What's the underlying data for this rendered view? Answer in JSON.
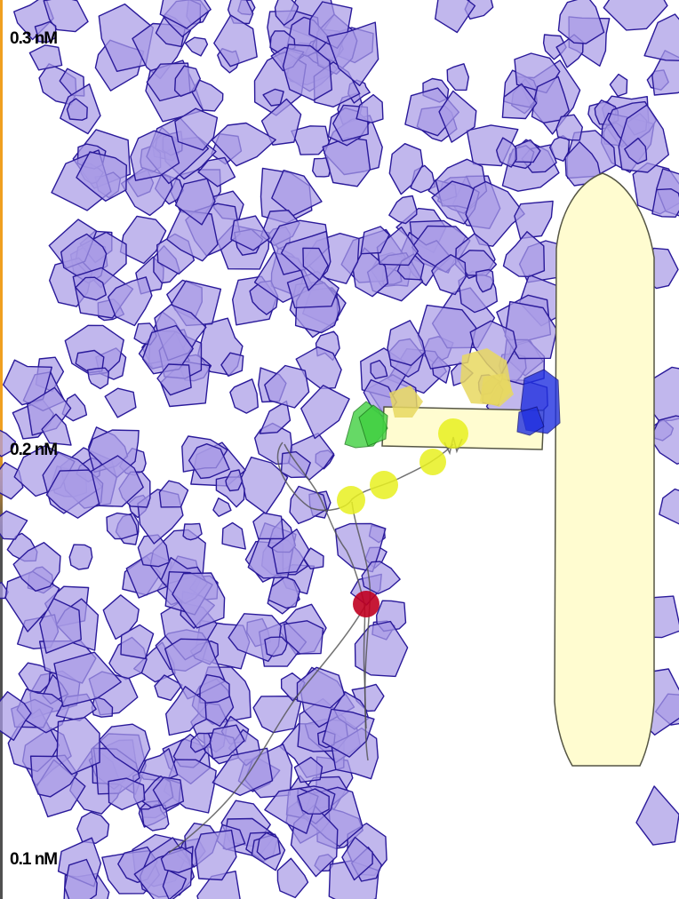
{
  "scale": {
    "labels": [
      "0.3 nM",
      "0.2 nM",
      "0.1 nM"
    ],
    "bar_color_top": "#f0a020",
    "bar_color_bottom": "#505050"
  },
  "colors": {
    "actin_fill": "#a99be6",
    "actin_stroke": "#2a1a9a",
    "filament_fill": "#fffcd0",
    "filament_stroke": "#555544",
    "bead_yellow": "#e8f020",
    "bead_gold": "#e8d860",
    "motor_green": "#40d040",
    "motor_blue": "#2030e0",
    "marker_red": "#c00020",
    "tether_line": "#505050"
  }
}
